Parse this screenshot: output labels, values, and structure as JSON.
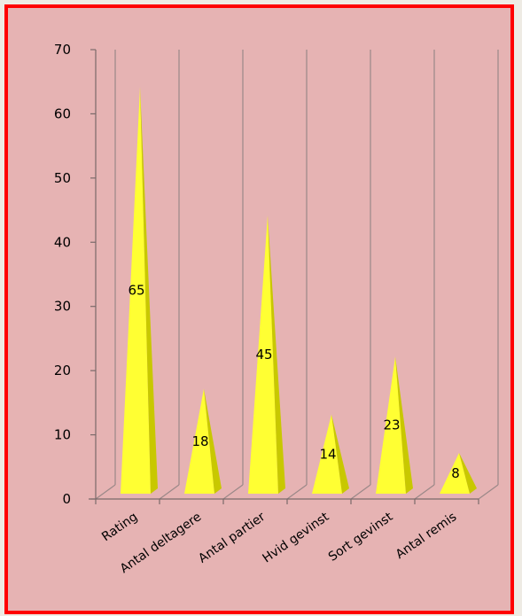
{
  "chart_data": {
    "type": "bar",
    "style": "3d-pyramid",
    "categories": [
      "Rating",
      "Antal deltagere",
      "Antal partier",
      "Hvid gevinst",
      "Sort gevinst",
      "Antal remis"
    ],
    "values": [
      65,
      18,
      45,
      14,
      23,
      8
    ],
    "ylim": [
      0,
      70
    ],
    "yticks": [
      0,
      10,
      20,
      30,
      40,
      50,
      60,
      70
    ],
    "grid": true,
    "legend": "none",
    "colors": {
      "bar_light": "#ffff33",
      "bar_dark": "#c8c800",
      "background": "#e6b3b3",
      "border": "#ff0000",
      "gridline": "#9a8888"
    }
  }
}
